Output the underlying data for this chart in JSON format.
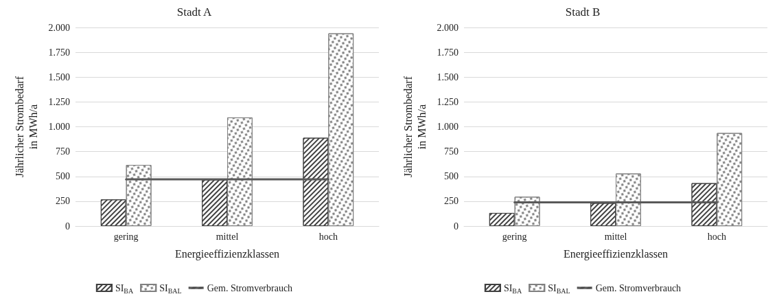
{
  "chart_data": [
    {
      "type": "bar",
      "title": "Stadt A",
      "xlabel": "Energieeffizienzklassen",
      "ylabel": "Jährlicher Strombedarf\nin MWh/a",
      "categories": [
        "gering",
        "mittel",
        "hoch"
      ],
      "ylim": [
        0,
        2000
      ],
      "yticks": [
        0,
        250,
        500,
        750,
        {
          "value": 1000,
          "label": "1.000"
        },
        {
          "value": 1250,
          "label": "1.250"
        },
        {
          "value": 1500,
          "label": "1.500"
        },
        {
          "value": 1750,
          "label": "1.750"
        },
        {
          "value": 2000,
          "label": "2.000"
        }
      ],
      "grid": "y",
      "legend": "bottom",
      "series": [
        {
          "name": "SI$_{BA}$",
          "color": "#404040",
          "values": [
            268,
            468,
            889
          ]
        },
        {
          "name": "SI$_{BAL}$",
          "color": "#808080",
          "values": [
            616,
            1094,
            1941
          ]
        },
        {
          "name": "Gem. Stromverbrauch",
          "type": "line",
          "color": "#595959",
          "values": [
            470,
            470,
            470
          ]
        }
      ]
    },
    {
      "type": "bar",
      "title": "Stadt B",
      "xlabel": "Energieeffizienzklassen",
      "ylabel": "Jährlicher Strombedarf\nin MWh/a",
      "categories": [
        "gering",
        "mittel",
        "hoch"
      ],
      "ylim": [
        0,
        2000
      ],
      "yticks": [
        0,
        250,
        500,
        750,
        {
          "value": 1000,
          "label": "1.000"
        },
        {
          "value": 1250,
          "label": "1.250"
        },
        {
          "value": 1500,
          "label": "1.500"
        },
        {
          "value": 1750,
          "label": "1.750"
        },
        {
          "value": 2000,
          "label": "2.000"
        }
      ],
      "grid": "y",
      "legend": "bottom",
      "series": [
        {
          "name": "SI$_{BA}$",
          "color": "#404040",
          "values": [
            132,
            232,
            432
          ]
        },
        {
          "name": "SI$_{BAL}$",
          "color": "#808080",
          "values": [
            295,
            529,
            937
          ]
        },
        {
          "name": "Gem. Stromverbrauch",
          "type": "line",
          "color": "#595959",
          "values": [
            239,
            239,
            239
          ]
        }
      ]
    }
  ]
}
